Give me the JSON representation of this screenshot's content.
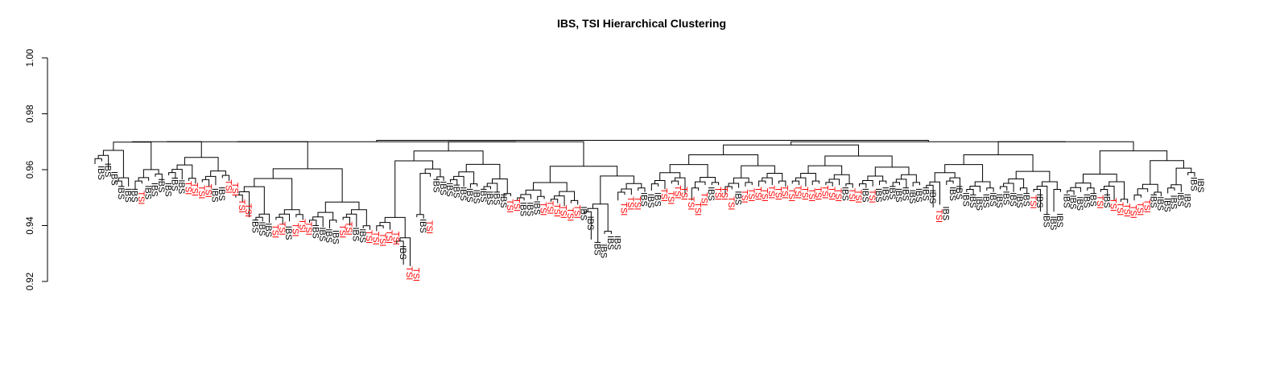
{
  "chart_data": {
    "type": "dendrogram",
    "title": "IBS, TSI Hierarchical Clustering",
    "xlabel": "",
    "ylabel": "",
    "ylim": [
      0.92,
      1.0
    ],
    "yticks": [
      0.92,
      0.94,
      0.96,
      0.98,
      1.0
    ],
    "ytick_labels": [
      "0.92",
      "0.94",
      "0.96",
      "0.98",
      "1.00"
    ],
    "groups": [
      "IBS",
      "TSI"
    ],
    "colors": {
      "IBS": "#000000",
      "TSI": "#ff0000"
    },
    "grid": false,
    "legend": "none",
    "root_height": 0.9705,
    "leaves": [
      {
        "label": "IBS",
        "height": 0.962
      },
      {
        "label": "IBS",
        "height": 0.963
      },
      {
        "label": "IBS",
        "height": 0.96
      },
      {
        "label": "IBS",
        "height": 0.955
      },
      {
        "label": "IBS",
        "height": 0.954
      },
      {
        "label": "IBS",
        "height": 0.954
      },
      {
        "label": "TSI",
        "height": 0.953
      },
      {
        "label": "IBS",
        "height": 0.955
      },
      {
        "label": "IBS",
        "height": 0.956
      },
      {
        "label": "IBS",
        "height": 0.9575
      },
      {
        "label": "IBS",
        "height": 0.956
      },
      {
        "label": "IBS",
        "height": 0.958
      },
      {
        "label": "IBS",
        "height": 0.957
      },
      {
        "label": "TSI",
        "height": 0.9565
      },
      {
        "label": "TSI",
        "height": 0.956
      },
      {
        "label": "TSI",
        "height": 0.955
      },
      {
        "label": "TSI",
        "height": 0.9555
      },
      {
        "label": "IBS",
        "height": 0.954
      },
      {
        "label": "IBS",
        "height": 0.9545
      },
      {
        "label": "TSI",
        "height": 0.957
      },
      {
        "label": "TSI",
        "height": 0.956
      },
      {
        "label": "TSI",
        "height": 0.95
      },
      {
        "label": "TSI",
        "height": 0.9485
      },
      {
        "label": "IBS",
        "height": 0.943
      },
      {
        "label": "IBS",
        "height": 0.942
      },
      {
        "label": "IBS",
        "height": 0.9415
      },
      {
        "label": "TSI",
        "height": 0.941
      },
      {
        "label": "TSI",
        "height": 0.942
      },
      {
        "label": "IBS",
        "height": 0.9405
      },
      {
        "label": "TSI",
        "height": 0.9415
      },
      {
        "label": "TSI",
        "height": 0.943
      },
      {
        "label": "TSI",
        "height": 0.942
      },
      {
        "label": "IBS",
        "height": 0.941
      },
      {
        "label": "IBS",
        "height": 0.94
      },
      {
        "label": "IBS",
        "height": 0.9395
      },
      {
        "label": "IBS",
        "height": 0.939
      },
      {
        "label": "TSI",
        "height": 0.941
      },
      {
        "label": "TSI",
        "height": 0.942
      },
      {
        "label": "IBS",
        "height": 0.94
      },
      {
        "label": "IBS",
        "height": 0.9395
      },
      {
        "label": "TSI",
        "height": 0.939
      },
      {
        "label": "TSI",
        "height": 0.9385
      },
      {
        "label": "TSI",
        "height": 0.938
      },
      {
        "label": "TSI",
        "height": 0.939
      },
      {
        "label": "TSI",
        "height": 0.9385
      },
      {
        "label": "IBS",
        "height": 0.9335
      },
      {
        "label": "TSI",
        "height": 0.926
      },
      {
        "label": "TSI",
        "height": 0.9255
      },
      {
        "label": "IBS",
        "height": 0.943
      },
      {
        "label": "TSI",
        "height": 0.9425
      },
      {
        "label": "IBS",
        "height": 0.9575
      },
      {
        "label": "IBS",
        "height": 0.9565
      },
      {
        "label": "IBS",
        "height": 0.956
      },
      {
        "label": "IBS",
        "height": 0.9555
      },
      {
        "label": "IBS",
        "height": 0.9545
      },
      {
        "label": "IBS",
        "height": 0.954
      },
      {
        "label": "IBS",
        "height": 0.9535
      },
      {
        "label": "IBS",
        "height": 0.954
      },
      {
        "label": "IBS",
        "height": 0.953
      },
      {
        "label": "IBS",
        "height": 0.953
      },
      {
        "label": "IBS",
        "height": 0.952
      },
      {
        "label": "TSI",
        "height": 0.95
      },
      {
        "label": "TSI",
        "height": 0.9505
      },
      {
        "label": "IBS",
        "height": 0.949
      },
      {
        "label": "IBS",
        "height": 0.949
      },
      {
        "label": "IBS",
        "height": 0.9495
      },
      {
        "label": "TSI",
        "height": 0.949
      },
      {
        "label": "TSI",
        "height": 0.9495
      },
      {
        "label": "TSI",
        "height": 0.9485
      },
      {
        "label": "TSI",
        "height": 0.948
      },
      {
        "label": "TSI",
        "height": 0.947
      },
      {
        "label": "TSI",
        "height": 0.948
      },
      {
        "label": "IBS",
        "height": 0.9475
      },
      {
        "label": "IBS",
        "height": 0.944
      },
      {
        "label": "IBS",
        "height": 0.935
      },
      {
        "label": "IBS",
        "height": 0.934
      },
      {
        "label": "IBS",
        "height": 0.937
      },
      {
        "label": "IBS",
        "height": 0.937
      },
      {
        "label": "TSI",
        "height": 0.949
      },
      {
        "label": "TSI",
        "height": 0.951
      },
      {
        "label": "TSI",
        "height": 0.951
      },
      {
        "label": "IBS",
        "height": 0.9525
      },
      {
        "label": "IBS",
        "height": 0.952
      },
      {
        "label": "IBS",
        "height": 0.9525
      },
      {
        "label": "TSI",
        "height": 0.954
      },
      {
        "label": "TSI",
        "height": 0.953
      },
      {
        "label": "TSI",
        "height": 0.955
      },
      {
        "label": "TSI",
        "height": 0.9545
      },
      {
        "label": "TSI",
        "height": 0.951
      },
      {
        "label": "TSI",
        "height": 0.949
      },
      {
        "label": "TSI",
        "height": 0.9525
      },
      {
        "label": "IBS",
        "height": 0.9545
      },
      {
        "label": "TSI",
        "height": 0.9545
      },
      {
        "label": "TSI",
        "height": 0.9545
      },
      {
        "label": "TSI",
        "height": 0.951
      },
      {
        "label": "IBS",
        "height": 0.953
      },
      {
        "label": "TSI",
        "height": 0.9535
      },
      {
        "label": "TSI",
        "height": 0.954
      },
      {
        "label": "TSI",
        "height": 0.9545
      },
      {
        "label": "TSI",
        "height": 0.954
      },
      {
        "label": "TSI",
        "height": 0.955
      },
      {
        "label": "TSI",
        "height": 0.9545
      },
      {
        "label": "TSI",
        "height": 0.955
      },
      {
        "label": "TSI",
        "height": 0.954
      },
      {
        "label": "TSI",
        "height": 0.955
      },
      {
        "label": "TSI",
        "height": 0.9545
      },
      {
        "label": "TSI",
        "height": 0.954
      },
      {
        "label": "TSI",
        "height": 0.9545
      },
      {
        "label": "TSI",
        "height": 0.955
      },
      {
        "label": "TSI",
        "height": 0.9545
      },
      {
        "label": "TSI",
        "height": 0.954
      },
      {
        "label": "IBS",
        "height": 0.9545
      },
      {
        "label": "TSI",
        "height": 0.954
      },
      {
        "label": "TSI",
        "height": 0.9535
      },
      {
        "label": "IBS",
        "height": 0.954
      },
      {
        "label": "TSI",
        "height": 0.9535
      },
      {
        "label": "IBS",
        "height": 0.954
      },
      {
        "label": "IBS",
        "height": 0.9545
      },
      {
        "label": "IBS",
        "height": 0.955
      },
      {
        "label": "IBS",
        "height": 0.954
      },
      {
        "label": "IBS",
        "height": 0.9545
      },
      {
        "label": "IBS",
        "height": 0.9535
      },
      {
        "label": "IBS",
        "height": 0.954
      },
      {
        "label": "IBS",
        "height": 0.9545
      },
      {
        "label": "IBS",
        "height": 0.9535
      },
      {
        "label": "TSI",
        "height": 0.9465
      },
      {
        "label": "IBS",
        "height": 0.9475
      },
      {
        "label": "IBS",
        "height": 0.9545
      },
      {
        "label": "IBS",
        "height": 0.955
      },
      {
        "label": "IBS",
        "height": 0.9525
      },
      {
        "label": "IBS",
        "height": 0.952
      },
      {
        "label": "IBS",
        "height": 0.951
      },
      {
        "label": "IBS",
        "height": 0.952
      },
      {
        "label": "IBS",
        "height": 0.9525
      },
      {
        "label": "IBS",
        "height": 0.952
      },
      {
        "label": "IBS",
        "height": 0.953
      },
      {
        "label": "IBS",
        "height": 0.9525
      },
      {
        "label": "IBS",
        "height": 0.952
      },
      {
        "label": "IBS",
        "height": 0.9525
      },
      {
        "label": "TSI",
        "height": 0.9515
      },
      {
        "label": "IBS",
        "height": 0.952
      },
      {
        "label": "IBS",
        "height": 0.945
      },
      {
        "label": "IBS",
        "height": 0.944
      },
      {
        "label": "IBS",
        "height": 0.945
      },
      {
        "label": "IBS",
        "height": 0.952
      },
      {
        "label": "IBS",
        "height": 0.9515
      },
      {
        "label": "IBS",
        "height": 0.951
      },
      {
        "label": "IBS",
        "height": 0.952
      },
      {
        "label": "IBS",
        "height": 0.9525
      },
      {
        "label": "TSI",
        "height": 0.9515
      },
      {
        "label": "IBS",
        "height": 0.952
      },
      {
        "label": "TSI",
        "height": 0.9505
      },
      {
        "label": "TSI",
        "height": 0.949
      },
      {
        "label": "TSI",
        "height": 0.9485
      },
      {
        "label": "TSI",
        "height": 0.948
      },
      {
        "label": "TSI",
        "height": 0.949
      },
      {
        "label": "TSI",
        "height": 0.95
      },
      {
        "label": "IBS",
        "height": 0.952
      },
      {
        "label": "IBS",
        "height": 0.951
      },
      {
        "label": "IBS",
        "height": 0.9505
      },
      {
        "label": "IBS",
        "height": 0.9515
      },
      {
        "label": "IBS",
        "height": 0.9525
      },
      {
        "label": "IBS",
        "height": 0.952
      },
      {
        "label": "IBS",
        "height": 0.958
      },
      {
        "label": "IBS",
        "height": 0.9575
      }
    ]
  }
}
